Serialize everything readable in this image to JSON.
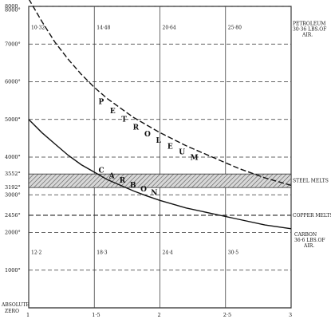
{
  "chart_data": {
    "type": "line",
    "title": "",
    "xlabel": "",
    "ylabel": "",
    "xlim": [
      1,
      3
    ],
    "ylim": [
      0,
      8000
    ],
    "grid": true,
    "x_ticks": [
      {
        "value": 1,
        "label": "1"
      },
      {
        "value": 1.5,
        "label": "1·5"
      },
      {
        "value": 2,
        "label": "2"
      },
      {
        "value": 2.5,
        "label": "2·5"
      },
      {
        "value": 3,
        "label": "3"
      }
    ],
    "y_ticks": [
      {
        "value": 8000,
        "label": "8000"
      },
      {
        "value": 7000,
        "label": "7000°"
      },
      {
        "value": 6000,
        "label": "6000°"
      },
      {
        "value": 5000,
        "label": "5000°"
      },
      {
        "value": 4000,
        "label": "4000°"
      },
      {
        "value": 3000,
        "label": "3000°"
      },
      {
        "value": 2000,
        "label": "2000°"
      },
      {
        "value": 1000,
        "label": "1000°"
      }
    ],
    "y_special": [
      {
        "value": 7900,
        "label": "8000°"
      },
      {
        "value": 3552,
        "label": "3552°"
      },
      {
        "value": 3192,
        "label": "3192°"
      },
      {
        "value": 2456,
        "label": "2456°"
      }
    ],
    "zero_label": [
      "ABSOLUTE",
      "ZERO"
    ],
    "series": [
      {
        "name": "PETROLEUM",
        "style": "dashed",
        "x": [
          1.0,
          1.1,
          1.2,
          1.3,
          1.4,
          1.5,
          1.6,
          1.7,
          1.8,
          1.9,
          2.0,
          2.2,
          2.4,
          2.6,
          2.8,
          3.0
        ],
        "y": [
          8200,
          7600,
          7050,
          6600,
          6200,
          5850,
          5550,
          5300,
          5050,
          4850,
          4650,
          4300,
          4000,
          3700,
          3450,
          3250
        ]
      },
      {
        "name": "CARBON",
        "style": "solid",
        "x": [
          1.0,
          1.1,
          1.2,
          1.3,
          1.4,
          1.5,
          1.6,
          1.7,
          1.8,
          1.9,
          2.0,
          2.2,
          2.4,
          2.6,
          2.8,
          3.0
        ],
        "y": [
          5000,
          4650,
          4350,
          4050,
          3800,
          3600,
          3400,
          3250,
          3100,
          2970,
          2850,
          2650,
          2500,
          2350,
          2200,
          2100
        ]
      }
    ],
    "band": {
      "from": 3192,
      "to": 3552,
      "label": "STEEL MELTS"
    },
    "hlines": [
      {
        "value": 2456,
        "label": "COPPER MELTS",
        "style": "dashed"
      }
    ],
    "top_row_labels": [
      {
        "x": 1.0,
        "label": "10·32"
      },
      {
        "x": 1.5,
        "label": "14·48"
      },
      {
        "x": 2.0,
        "label": "20·64"
      },
      {
        "x": 2.5,
        "label": "25·80"
      }
    ],
    "bottom_row_labels": [
      {
        "x": 1.0,
        "label": "12·2"
      },
      {
        "x": 1.5,
        "label": "18·3"
      },
      {
        "x": 2.0,
        "label": "24·4"
      },
      {
        "x": 2.5,
        "label": "30·5"
      }
    ],
    "right_notes": {
      "petroleum": [
        "PETROLEUM",
        "30·36 LBS.OF",
        "AIR."
      ],
      "carbon": [
        "CARBON",
        "36·6 LBS.OF",
        "AIR."
      ]
    }
  }
}
